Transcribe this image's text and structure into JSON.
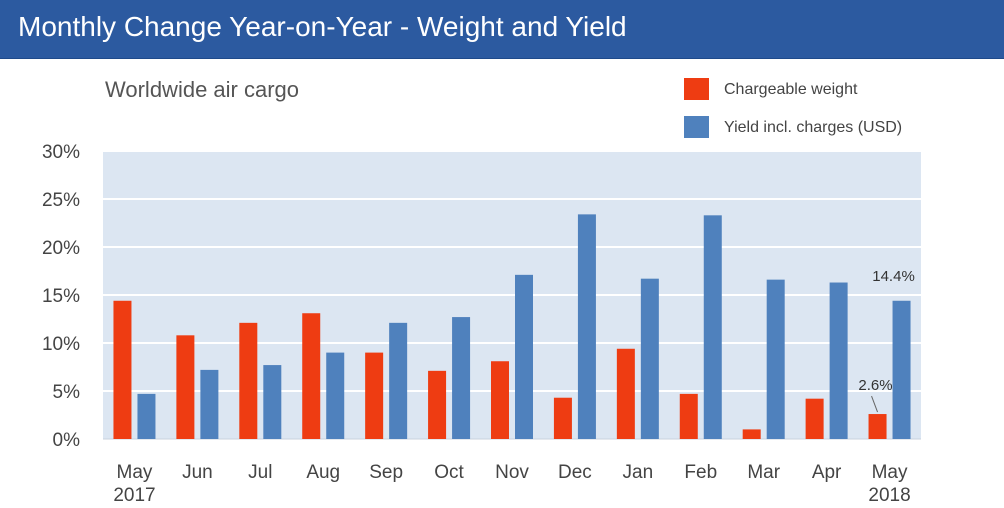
{
  "header": {
    "title": "Monthly Change Year-on-Year - Weight and Yield"
  },
  "chart_data": {
    "type": "bar",
    "title": "Worldwide air cargo",
    "categories": [
      "May\n2017",
      "Jun",
      "Jul",
      "Aug",
      "Sep",
      "Oct",
      "Nov",
      "Dec",
      "Jan",
      "Feb",
      "Mar",
      "Apr",
      "May\n2018"
    ],
    "series": [
      {
        "name": "Chargeable weight",
        "color": "#ee3c12",
        "values": [
          14.4,
          10.8,
          12.1,
          13.1,
          9.0,
          7.1,
          8.1,
          4.3,
          9.4,
          4.7,
          1.0,
          4.2,
          2.6
        ]
      },
      {
        "name": "Yield incl. charges (USD)",
        "color": "#4f81bd",
        "values": [
          4.7,
          7.2,
          7.7,
          9.0,
          12.1,
          12.7,
          17.1,
          23.4,
          16.7,
          23.3,
          16.6,
          16.3,
          14.4
        ]
      }
    ],
    "yticks": [
      "0%",
      "5%",
      "10%",
      "15%",
      "20%",
      "25%",
      "30%"
    ],
    "ylim": [
      0,
      30
    ],
    "annotations": [
      {
        "series": 0,
        "index": 12,
        "text": "2.6%"
      },
      {
        "series": 1,
        "index": 12,
        "text": "14.4%"
      }
    ],
    "plot_background": "#dce6f2",
    "grid": true,
    "legend_position": "top-right"
  }
}
